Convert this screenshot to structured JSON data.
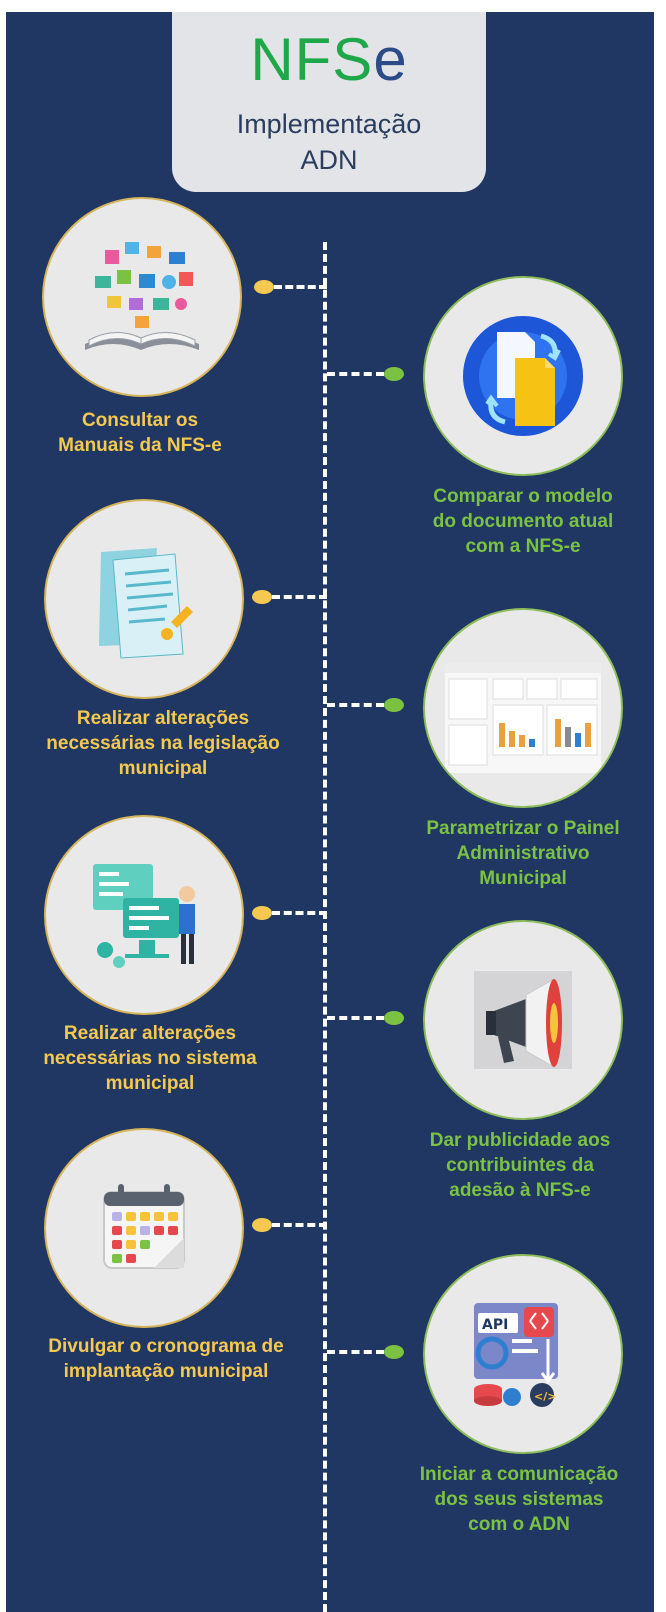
{
  "header": {
    "title_nfs": "NFS",
    "title_e": "e",
    "subtitle_line1": "Implementação",
    "subtitle_line2": "ADN"
  },
  "steps": [
    {
      "label": [
        "Consultar os",
        "Manuais da NFS-e"
      ],
      "icon": "manuals-book-icon",
      "color": "#f5c84f"
    },
    {
      "label": [
        "Comparar o modelo",
        "do documento atual",
        "com a NFS-e"
      ],
      "icon": "compare-documents-icon",
      "color": "#7cc242"
    },
    {
      "label": [
        "Realizar alterações",
        "necessárias na legislação",
        "municipal"
      ],
      "icon": "legislation-document-icon",
      "color": "#f5c84f"
    },
    {
      "label": [
        "Parametrizar o Painel",
        "Administrativo",
        "Municipal"
      ],
      "icon": "admin-dashboard-icon",
      "color": "#7cc242"
    },
    {
      "label": [
        "Realizar alterações",
        "necessárias no sistema",
        "municipal"
      ],
      "icon": "system-development-icon",
      "color": "#f5c84f"
    },
    {
      "label": [
        "Dar publicidade aos",
        "contribuintes da",
        "adesão à NFS-e"
      ],
      "icon": "megaphone-icon",
      "color": "#7cc242"
    },
    {
      "label": [
        "Divulgar o cronograma de",
        "implantação municipal"
      ],
      "icon": "calendar-icon",
      "color": "#f5c84f"
    },
    {
      "label": [
        "Iniciar a comunicação",
        "dos seus sistemas",
        "com o ADN"
      ],
      "icon": "api-integration-icon",
      "color": "#7cc242"
    }
  ],
  "colors": {
    "background": "#1f3762",
    "title_box": "#e3e4e8",
    "left_accent": "#f5c84f",
    "right_accent": "#7cc242"
  }
}
